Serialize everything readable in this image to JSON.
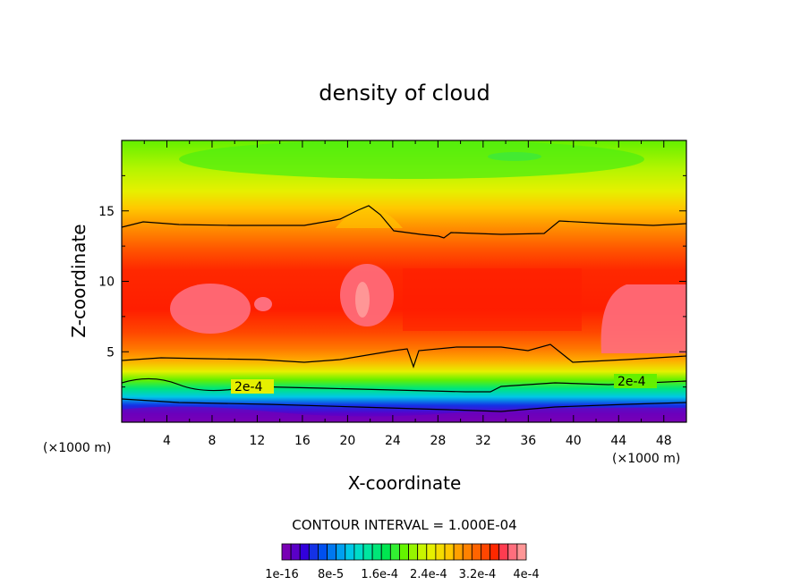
{
  "chart_data": {
    "type": "heatmap",
    "title": "density of cloud",
    "xlabel": "X-coordinate",
    "ylabel": "Z-coordinate",
    "x_unit": "(×1000 m)",
    "x_unit_right": "(×1000 m)",
    "xlim": [
      0,
      50
    ],
    "ylim": [
      0,
      20
    ],
    "x_ticks": [
      "4",
      "8",
      "12",
      "16",
      "20",
      "24",
      "28",
      "32",
      "36",
      "40",
      "44",
      "48"
    ],
    "y_ticks": [
      "5",
      "10",
      "15"
    ],
    "contour_labels": [
      "2e-4",
      "2e-4"
    ],
    "contour_interval": "CONTOUR INTERVAL = 1.000E-04",
    "colorbar_labels": [
      "1e-16",
      "8e-5",
      "1.6e-4",
      "2.4e-4",
      "3.2e-4",
      "4e-4"
    ],
    "colorbar_colors": [
      "#7800b4",
      "#5a00c8",
      "#3200dc",
      "#1432e6",
      "#0050f0",
      "#0078f0",
      "#00a0f0",
      "#00c8e6",
      "#00dcc8",
      "#00e6a0",
      "#00e678",
      "#00e650",
      "#32f032",
      "#64f500",
      "#96f500",
      "#c8f500",
      "#e6f000",
      "#f5dc00",
      "#ffc800",
      "#ffa000",
      "#ff8200",
      "#ff6400",
      "#ff4600",
      "#ff2800",
      "#ff3c50",
      "#ff6e7d",
      "#ff9696"
    ]
  }
}
